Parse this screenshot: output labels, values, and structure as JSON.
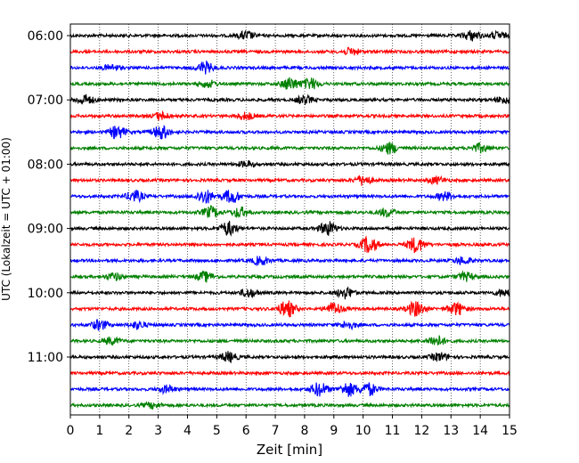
{
  "chart_data": {
    "type": "line",
    "subtype": "helicorder",
    "title": "",
    "xlabel": "Zeit  [min]",
    "ylabel": "UTC (Lokalzeit = UTC + 01:00)",
    "xlim": [
      0,
      15
    ],
    "x_ticks": [
      "0",
      "1",
      "2",
      "3",
      "4",
      "5",
      "6",
      "7",
      "8",
      "9",
      "10",
      "11",
      "12",
      "13",
      "14",
      "15"
    ],
    "y_tick_labels": [
      "06:00",
      "07:00",
      "08:00",
      "09:00",
      "10:00",
      "11:00"
    ],
    "y_tick_rows": [
      0,
      4,
      8,
      12,
      16,
      20
    ],
    "trace_start_time": "06:00",
    "trace_length_min": 15,
    "grid": "vertical dotted at each minute",
    "trace_colors": [
      "#000000",
      "#ff0000",
      "#0000ff",
      "#008000"
    ],
    "traces": [
      {
        "start": "06:00",
        "events": [
          [
            6.0,
            0.6
          ],
          [
            13.7,
            0.7
          ],
          [
            14.6,
            0.5
          ]
        ]
      },
      {
        "start": "06:15",
        "events": [
          [
            9.6,
            0.5
          ]
        ]
      },
      {
        "start": "06:30",
        "events": [
          [
            4.6,
            0.8
          ],
          [
            1.4,
            0.4
          ]
        ]
      },
      {
        "start": "06:45",
        "events": [
          [
            7.5,
            0.9
          ],
          [
            8.2,
            0.8
          ],
          [
            4.7,
            0.5
          ]
        ]
      },
      {
        "start": "07:00",
        "events": [
          [
            0.5,
            0.7
          ],
          [
            8.0,
            0.6
          ],
          [
            14.8,
            0.5
          ]
        ]
      },
      {
        "start": "07:15",
        "events": [
          [
            3.1,
            0.5
          ],
          [
            6.0,
            0.5
          ]
        ]
      },
      {
        "start": "07:30",
        "events": [
          [
            1.6,
            0.9
          ],
          [
            3.1,
            1.0
          ]
        ]
      },
      {
        "start": "07:45",
        "events": [
          [
            10.9,
            0.8
          ],
          [
            14.0,
            0.6
          ]
        ]
      },
      {
        "start": "08:00",
        "events": [
          [
            6.0,
            0.4
          ]
        ]
      },
      {
        "start": "08:15",
        "events": [
          [
            10.0,
            0.7
          ],
          [
            12.5,
            0.5
          ]
        ]
      },
      {
        "start": "08:30",
        "events": [
          [
            2.2,
            0.8
          ],
          [
            4.6,
            1.0
          ],
          [
            5.5,
            1.0
          ],
          [
            12.8,
            0.6
          ]
        ]
      },
      {
        "start": "08:45",
        "events": [
          [
            4.8,
            0.8
          ],
          [
            5.8,
            0.7
          ],
          [
            10.8,
            0.6
          ]
        ]
      },
      {
        "start": "09:00",
        "events": [
          [
            5.4,
            1.0
          ],
          [
            8.8,
            1.0
          ]
        ]
      },
      {
        "start": "09:15",
        "events": [
          [
            10.2,
            1.2
          ],
          [
            11.8,
            1.1
          ]
        ]
      },
      {
        "start": "09:30",
        "events": [
          [
            6.5,
            0.6
          ],
          [
            13.4,
            0.5
          ]
        ]
      },
      {
        "start": "09:45",
        "events": [
          [
            1.5,
            0.5
          ],
          [
            4.6,
            0.7
          ],
          [
            13.5,
            0.6
          ]
        ]
      },
      {
        "start": "10:00",
        "events": [
          [
            6.1,
            0.6
          ],
          [
            9.4,
            0.8
          ],
          [
            14.8,
            0.5
          ]
        ]
      },
      {
        "start": "10:15",
        "events": [
          [
            7.4,
            1.2
          ],
          [
            9.0,
            0.9
          ],
          [
            11.8,
            1.1
          ],
          [
            13.2,
            0.9
          ]
        ]
      },
      {
        "start": "10:30",
        "events": [
          [
            1.0,
            0.7
          ],
          [
            2.3,
            0.5
          ],
          [
            9.5,
            0.5
          ]
        ]
      },
      {
        "start": "10:45",
        "events": [
          [
            1.4,
            0.5
          ],
          [
            12.5,
            0.8
          ]
        ]
      },
      {
        "start": "11:00",
        "events": [
          [
            5.4,
            0.7
          ],
          [
            12.6,
            0.6
          ]
        ]
      },
      {
        "start": "11:15",
        "events": []
      },
      {
        "start": "11:30",
        "events": [
          [
            3.3,
            0.5
          ],
          [
            8.5,
            1.0
          ],
          [
            9.5,
            1.0
          ],
          [
            10.2,
            0.9
          ]
        ]
      },
      {
        "start": "11:45",
        "events": [
          [
            2.8,
            0.4
          ]
        ]
      }
    ]
  }
}
